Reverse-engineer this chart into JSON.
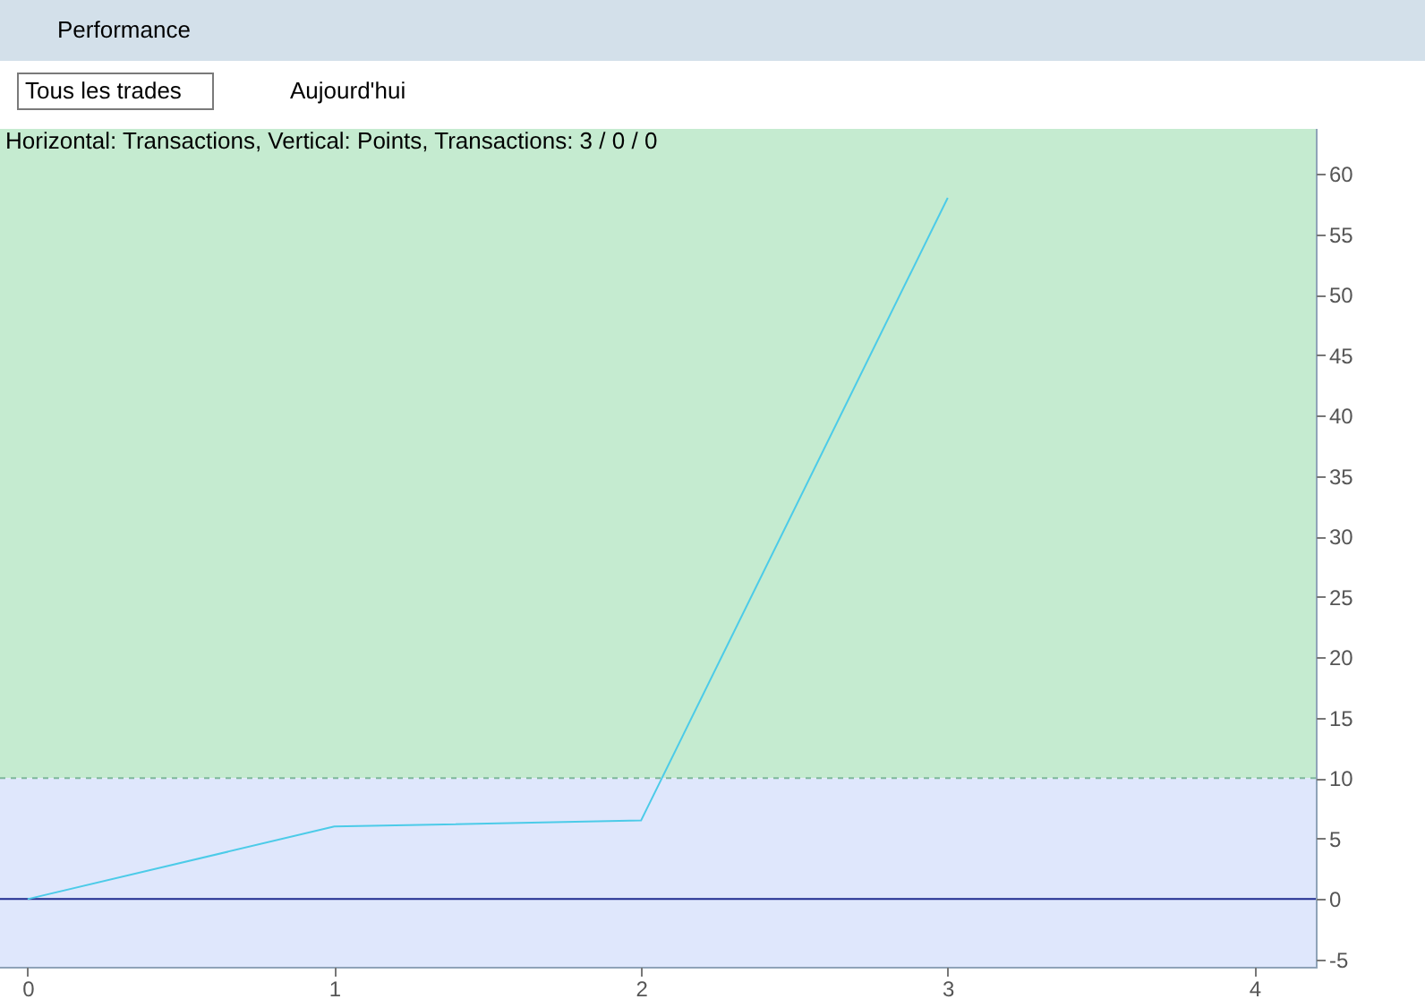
{
  "chart_data": {
    "type": "line",
    "title": "Horizontal: Transactions, Vertical: Points, Transactions: 3 / 0 / 0",
    "annotations": [
      "Performance",
      "Tous les trades",
      "Aujourd'hui"
    ],
    "x": [
      0,
      1,
      2,
      3
    ],
    "values": [
      0,
      6,
      6.5,
      58
    ],
    "color": "#4ccbe8",
    "xlim": [
      -0.09,
      4.2
    ],
    "xticks": [
      0,
      1,
      2,
      3,
      4
    ],
    "ylim": [
      -5.6,
      63.7
    ],
    "yticks": [
      -5,
      0,
      5,
      10,
      15,
      20,
      25,
      30,
      35,
      40,
      45,
      50,
      55,
      60
    ],
    "bands": [
      {
        "axis": "y",
        "from": 10,
        "to": 63.7,
        "color": "#c5ebd0"
      },
      {
        "axis": "y",
        "from": -5.6,
        "to": 10,
        "color": "#dfe7fc"
      }
    ],
    "ref_lines": [
      {
        "axis": "y",
        "value": 10,
        "color": "#7fb89c",
        "line_style": "dashed"
      },
      {
        "axis": "y",
        "value": 0,
        "color": "#1f2b8f",
        "line_style": "solid"
      }
    ],
    "grid": false,
    "marker": "none",
    "line_style": "solid"
  }
}
